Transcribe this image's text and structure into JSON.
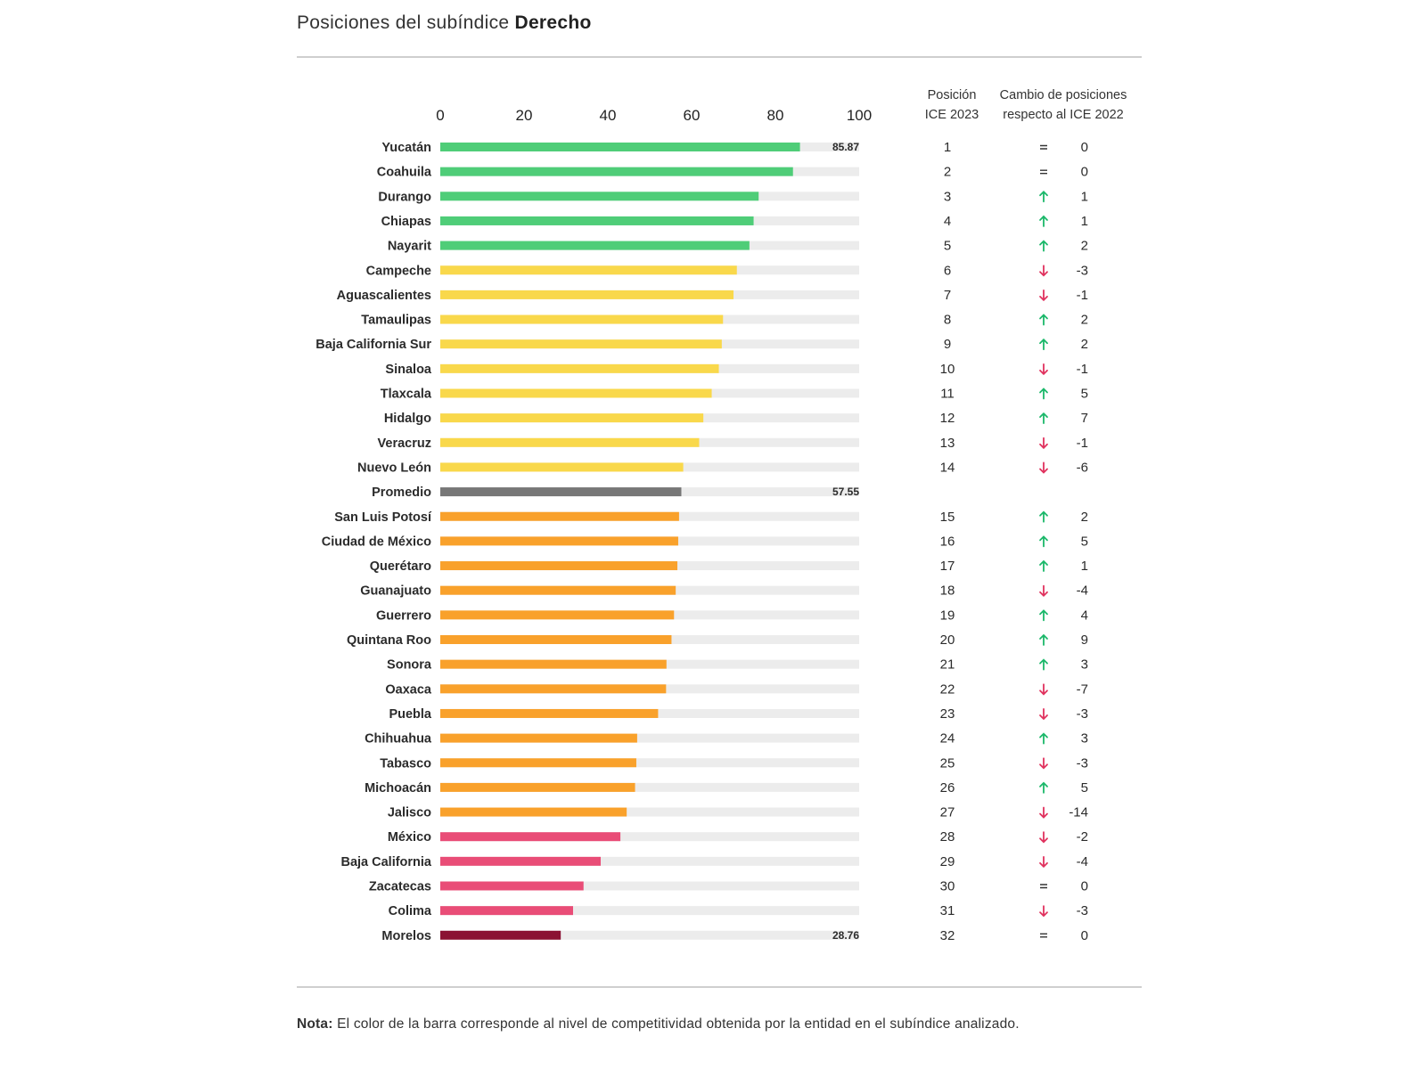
{
  "title": {
    "prefix": "Posiciones del subíndice",
    "bold": "Derecho"
  },
  "columns": {
    "position_line1": "Posición",
    "position_line2": "ICE 2023",
    "change_line1": "Cambio de posiciones",
    "change_line2": "respecto al ICE 2022"
  },
  "note": {
    "label": "Nota:",
    "text": "El color de la barra corresponde al nivel de competitividad obtenida por la entidad en el subíndice analizado."
  },
  "colors": {
    "green": "#4fcd78",
    "yellow": "#f9d84b",
    "gray": "#777777",
    "orange": "#f9a12b",
    "pink": "#e94d77",
    "darkred": "#8b1233",
    "track": "#ececec",
    "up": "#1bb86a",
    "down": "#e0325e"
  },
  "chart_data": {
    "type": "bar",
    "orientation": "horizontal",
    "xlim": [
      0,
      100
    ],
    "xticks": [
      "0",
      "20",
      "40",
      "60",
      "80",
      "100"
    ],
    "rows": [
      {
        "state": "Yucatán",
        "value": 85.87,
        "label": "85.87",
        "color": "green",
        "pos": "1",
        "dir": "eq",
        "change": "0"
      },
      {
        "state": "Coahuila",
        "value": 84.2,
        "label": "",
        "color": "green",
        "pos": "2",
        "dir": "eq",
        "change": "0"
      },
      {
        "state": "Durango",
        "value": 76.0,
        "label": "",
        "color": "green",
        "pos": "3",
        "dir": "up",
        "change": "1"
      },
      {
        "state": "Chiapas",
        "value": 74.8,
        "label": "",
        "color": "green",
        "pos": "4",
        "dir": "up",
        "change": "1"
      },
      {
        "state": "Nayarit",
        "value": 73.8,
        "label": "",
        "color": "green",
        "pos": "5",
        "dir": "up",
        "change": "2"
      },
      {
        "state": "Campeche",
        "value": 70.8,
        "label": "",
        "color": "yellow",
        "pos": "6",
        "dir": "down",
        "change": "-3"
      },
      {
        "state": "Aguascalientes",
        "value": 70.0,
        "label": "",
        "color": "yellow",
        "pos": "7",
        "dir": "down",
        "change": "-1"
      },
      {
        "state": "Tamaulipas",
        "value": 67.5,
        "label": "",
        "color": "yellow",
        "pos": "8",
        "dir": "up",
        "change": "2"
      },
      {
        "state": "Baja California Sur",
        "value": 67.2,
        "label": "",
        "color": "yellow",
        "pos": "9",
        "dir": "up",
        "change": "2"
      },
      {
        "state": "Sinaloa",
        "value": 66.5,
        "label": "",
        "color": "yellow",
        "pos": "10",
        "dir": "down",
        "change": "-1"
      },
      {
        "state": "Tlaxcala",
        "value": 64.8,
        "label": "",
        "color": "yellow",
        "pos": "11",
        "dir": "up",
        "change": "5"
      },
      {
        "state": "Hidalgo",
        "value": 62.8,
        "label": "",
        "color": "yellow",
        "pos": "12",
        "dir": "up",
        "change": "7"
      },
      {
        "state": "Veracruz",
        "value": 61.8,
        "label": "",
        "color": "yellow",
        "pos": "13",
        "dir": "down",
        "change": "-1"
      },
      {
        "state": "Nuevo León",
        "value": 58.0,
        "label": "",
        "color": "yellow",
        "pos": "14",
        "dir": "down",
        "change": "-6"
      },
      {
        "state": "Promedio",
        "value": 57.55,
        "label": "57.55",
        "color": "gray",
        "pos": "",
        "dir": "",
        "change": ""
      },
      {
        "state": "San Luis Potosí",
        "value": 57.0,
        "label": "",
        "color": "orange",
        "pos": "15",
        "dir": "up",
        "change": "2"
      },
      {
        "state": "Ciudad de México",
        "value": 56.8,
        "label": "",
        "color": "orange",
        "pos": "16",
        "dir": "up",
        "change": "5"
      },
      {
        "state": "Querétaro",
        "value": 56.6,
        "label": "",
        "color": "orange",
        "pos": "17",
        "dir": "up",
        "change": "1"
      },
      {
        "state": "Guanajuato",
        "value": 56.2,
        "label": "",
        "color": "orange",
        "pos": "18",
        "dir": "down",
        "change": "-4"
      },
      {
        "state": "Guerrero",
        "value": 55.8,
        "label": "",
        "color": "orange",
        "pos": "19",
        "dir": "up",
        "change": "4"
      },
      {
        "state": "Quintana Roo",
        "value": 55.2,
        "label": "",
        "color": "orange",
        "pos": "20",
        "dir": "up",
        "change": "9"
      },
      {
        "state": "Sonora",
        "value": 54.0,
        "label": "",
        "color": "orange",
        "pos": "21",
        "dir": "up",
        "change": "3"
      },
      {
        "state": "Oaxaca",
        "value": 53.9,
        "label": "",
        "color": "orange",
        "pos": "22",
        "dir": "down",
        "change": "-7"
      },
      {
        "state": "Puebla",
        "value": 52.0,
        "label": "",
        "color": "orange",
        "pos": "23",
        "dir": "down",
        "change": "-3"
      },
      {
        "state": "Chihuahua",
        "value": 47.0,
        "label": "",
        "color": "orange",
        "pos": "24",
        "dir": "up",
        "change": "3"
      },
      {
        "state": "Tabasco",
        "value": 46.8,
        "label": "",
        "color": "orange",
        "pos": "25",
        "dir": "down",
        "change": "-3"
      },
      {
        "state": "Michoacán",
        "value": 46.5,
        "label": "",
        "color": "orange",
        "pos": "26",
        "dir": "up",
        "change": "5"
      },
      {
        "state": "Jalisco",
        "value": 44.5,
        "label": "",
        "color": "orange",
        "pos": "27",
        "dir": "down",
        "change": "-14"
      },
      {
        "state": "México",
        "value": 43.0,
        "label": "",
        "color": "pink",
        "pos": "28",
        "dir": "down",
        "change": "-2"
      },
      {
        "state": "Baja California",
        "value": 38.3,
        "label": "",
        "color": "pink",
        "pos": "29",
        "dir": "down",
        "change": "-4"
      },
      {
        "state": "Zacatecas",
        "value": 34.2,
        "label": "",
        "color": "pink",
        "pos": "30",
        "dir": "eq",
        "change": "0"
      },
      {
        "state": "Colima",
        "value": 31.7,
        "label": "",
        "color": "pink",
        "pos": "31",
        "dir": "down",
        "change": "-3"
      },
      {
        "state": "Morelos",
        "value": 28.76,
        "label": "28.76",
        "color": "darkred",
        "pos": "32",
        "dir": "eq",
        "change": "0"
      }
    ]
  }
}
